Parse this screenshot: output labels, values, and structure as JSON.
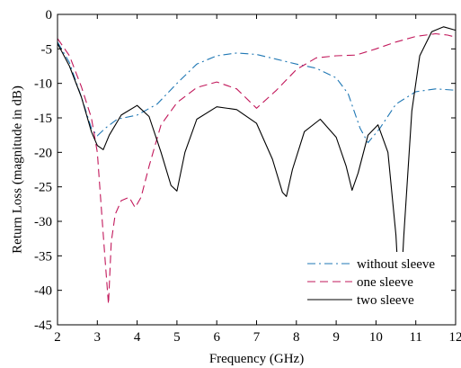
{
  "chart_data": {
    "type": "line",
    "title": "",
    "xlabel": "Frequency (GHz)",
    "ylabel": "Return Loss (magnitude in dB)",
    "xlim": [
      2,
      12
    ],
    "ylim": [
      -45,
      0
    ],
    "xticks": [
      2,
      3,
      4,
      5,
      6,
      7,
      8,
      9,
      10,
      11,
      12
    ],
    "yticks": [
      0,
      -5,
      -10,
      -15,
      -20,
      -25,
      -30,
      -35,
      -40,
      -45
    ],
    "grid": false,
    "legend_position": "bottom-right",
    "series": [
      {
        "name": "without sleeve",
        "color": "#1f77b4",
        "dash": "dash-dot",
        "x": [
          2.0,
          2.3,
          2.6,
          2.85,
          3.0,
          3.2,
          3.5,
          4.0,
          4.5,
          5.0,
          5.5,
          6.0,
          6.5,
          7.0,
          7.5,
          8.0,
          8.5,
          9.0,
          9.3,
          9.6,
          9.8,
          10.1,
          10.5,
          11.0,
          11.5,
          12.0
        ],
        "y": [
          -4.0,
          -7.0,
          -12.0,
          -16.5,
          -17.6,
          -16.5,
          -15.2,
          -14.6,
          -13.0,
          -10.0,
          -7.2,
          -6.0,
          -5.6,
          -5.8,
          -6.5,
          -7.2,
          -7.8,
          -9.2,
          -11.5,
          -16.5,
          -18.6,
          -16.5,
          -13.0,
          -11.2,
          -10.8,
          -11.0
        ]
      },
      {
        "name": "one sleeve",
        "color": "#c2185b",
        "dash": "dashed",
        "x": [
          2.0,
          2.3,
          2.6,
          2.85,
          3.0,
          3.1,
          3.2,
          3.28,
          3.35,
          3.45,
          3.6,
          3.8,
          3.95,
          4.1,
          4.3,
          4.6,
          5.0,
          5.5,
          6.0,
          6.5,
          7.0,
          7.5,
          8.0,
          8.5,
          9.0,
          9.5,
          10.0,
          10.5,
          11.0,
          11.5,
          11.8,
          12.0
        ],
        "y": [
          -3.5,
          -6.0,
          -10.5,
          -15.0,
          -20.0,
          -28.0,
          -36.0,
          -42.0,
          -33.0,
          -29.0,
          -27.0,
          -26.5,
          -28.0,
          -26.5,
          -22.0,
          -16.0,
          -12.8,
          -10.6,
          -9.8,
          -10.8,
          -13.6,
          -11.0,
          -8.0,
          -6.3,
          -6.0,
          -5.9,
          -5.0,
          -4.0,
          -3.2,
          -2.8,
          -3.0,
          -3.3
        ]
      },
      {
        "name": "two sleeve",
        "color": "#000000",
        "dash": "solid",
        "x": [
          2.0,
          2.3,
          2.6,
          2.85,
          3.0,
          3.15,
          3.3,
          3.6,
          4.0,
          4.3,
          4.6,
          4.85,
          5.0,
          5.2,
          5.5,
          6.0,
          6.5,
          7.0,
          7.4,
          7.65,
          7.75,
          7.9,
          8.2,
          8.6,
          9.0,
          9.25,
          9.4,
          9.55,
          9.8,
          10.05,
          10.3,
          10.5,
          10.6,
          10.7,
          10.9,
          11.1,
          11.4,
          11.7,
          12.0
        ],
        "y": [
          -4.2,
          -7.5,
          -12.0,
          -17.0,
          -19.0,
          -19.6,
          -17.5,
          -14.6,
          -13.2,
          -14.8,
          -20.0,
          -24.8,
          -25.6,
          -20.0,
          -15.2,
          -13.4,
          -13.8,
          -15.8,
          -21.0,
          -25.8,
          -26.4,
          -22.5,
          -17.0,
          -15.2,
          -17.8,
          -22.0,
          -25.5,
          -23.0,
          -17.5,
          -16.0,
          -20.0,
          -32.0,
          -42.5,
          -32.0,
          -14.0,
          -6.0,
          -2.5,
          -1.8,
          -2.3
        ]
      }
    ]
  }
}
